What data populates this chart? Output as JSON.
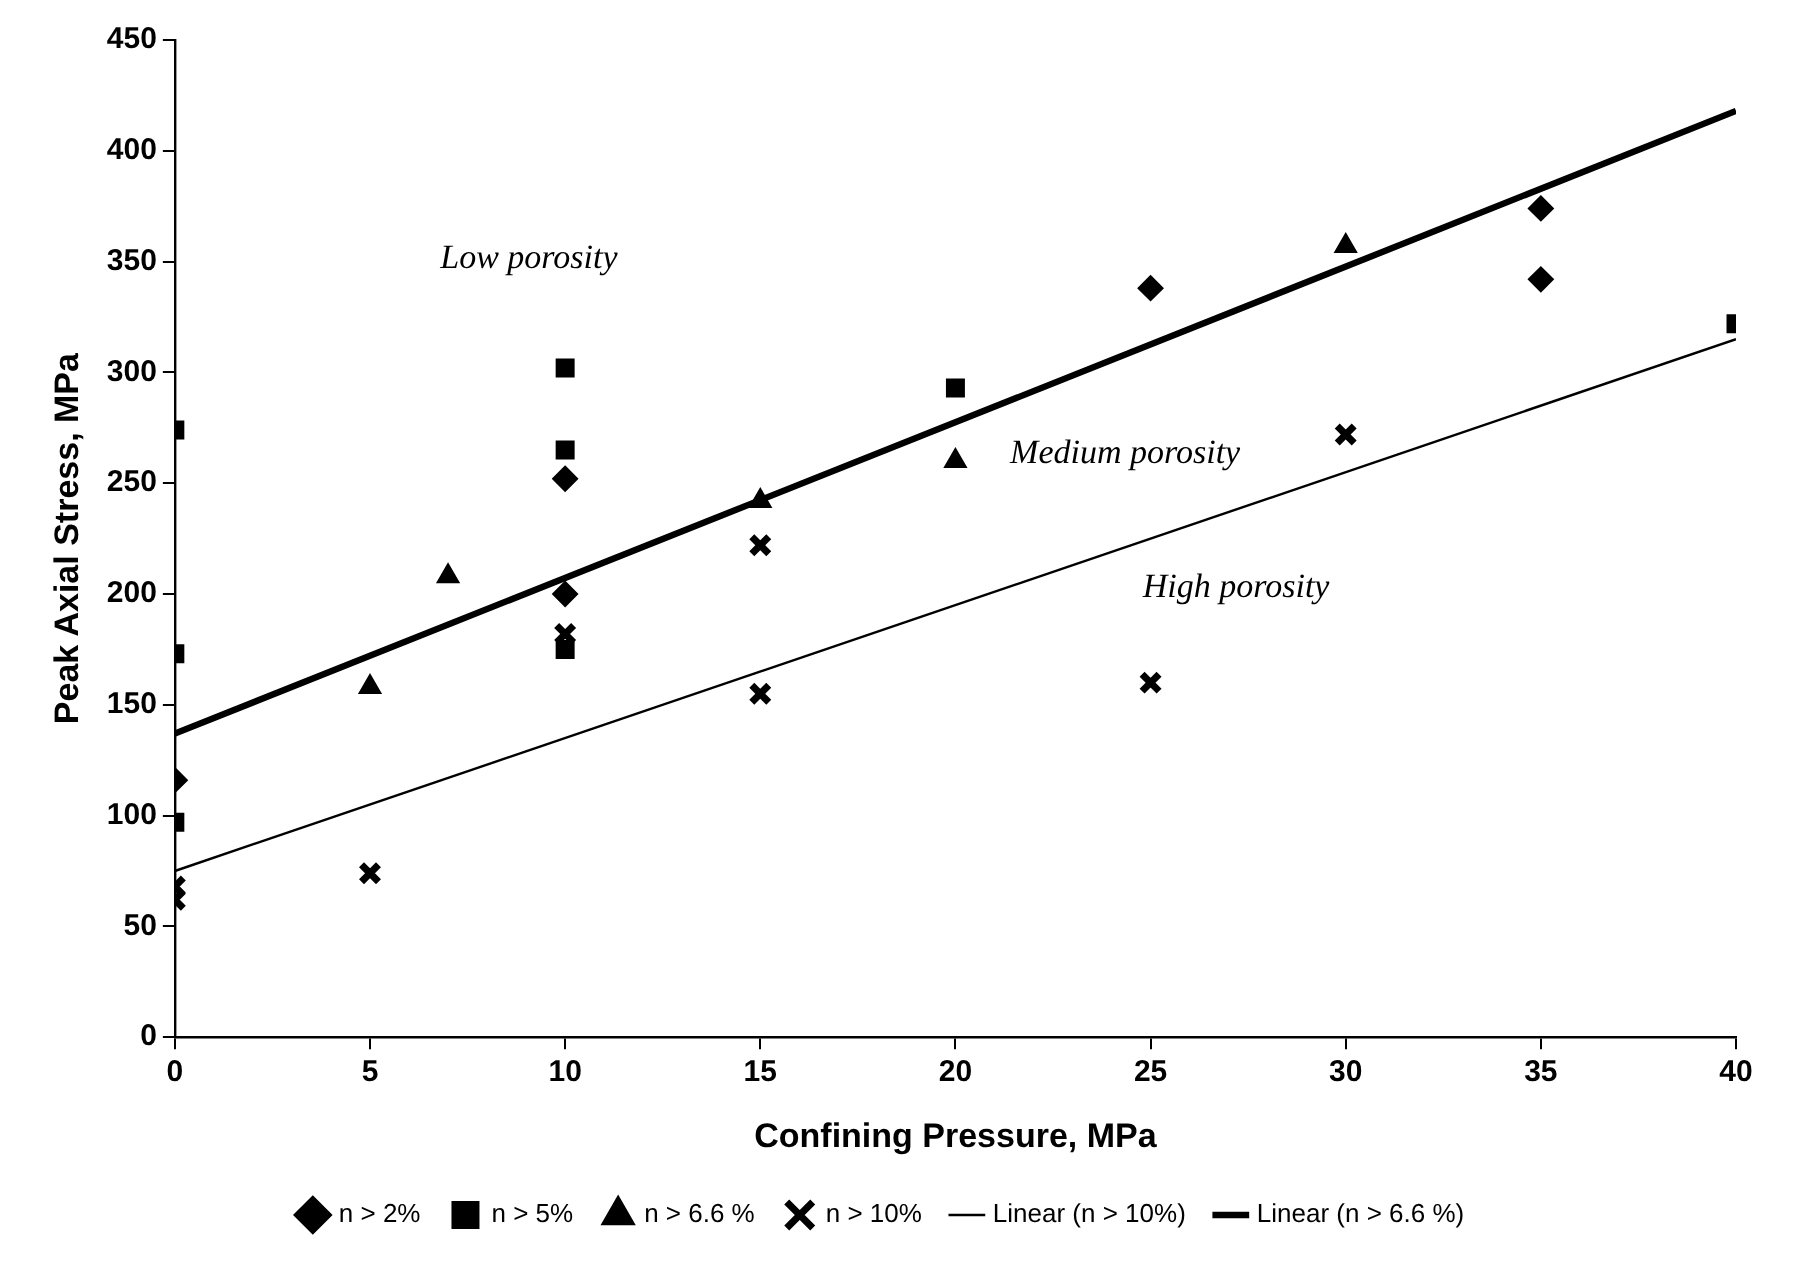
{
  "chart_data": {
    "type": "scatter",
    "xlabel": "Confining Pressure, MPa",
    "ylabel": "Peak Axial Stress, MPa",
    "xlim": [
      0,
      40
    ],
    "ylim": [
      0,
      450
    ],
    "xticks": [
      0,
      5,
      10,
      15,
      20,
      25,
      30,
      35,
      40
    ],
    "yticks": [
      0,
      50,
      100,
      150,
      200,
      250,
      300,
      350,
      400,
      450
    ],
    "grid": false,
    "legend": "bottom",
    "annotations": [
      "Low porosity",
      "Medium porosity",
      "High porosity"
    ],
    "series": [
      {
        "name": "n > 2%",
        "color": "#000000",
        "marker": "diamond",
        "x": [
          0,
          10,
          10,
          25,
          35,
          35
        ],
        "values": [
          116,
          252,
          200,
          338,
          374,
          342
        ]
      },
      {
        "name": "n > 5%",
        "color": "#000000",
        "marker": "square",
        "x": [
          0,
          0,
          0,
          10,
          10,
          10,
          20,
          40
        ],
        "values": [
          274,
          173,
          97,
          302,
          265,
          175,
          293,
          322
        ]
      },
      {
        "name": "n > 6.6 %",
        "color": "#000000",
        "marker": "triangle",
        "x": [
          5,
          7,
          15,
          20,
          30
        ],
        "values": [
          158,
          208,
          242,
          260,
          357
        ]
      },
      {
        "name": "n > 10%",
        "color": "#000000",
        "marker": "cross",
        "x": [
          0,
          0,
          5,
          10,
          15,
          15,
          25,
          30
        ],
        "values": [
          68,
          62,
          74,
          182,
          222,
          155,
          160,
          272
        ]
      },
      {
        "name": "Linear (n > 10%)",
        "type": "line",
        "color": "#000000",
        "marker": "none",
        "line_style": "solid",
        "x": [
          0,
          40
        ],
        "values": [
          75,
          315
        ]
      },
      {
        "name": "Linear (n > 6.6 %)",
        "type": "line",
        "color": "#000000",
        "marker": "none",
        "line_style": "solid",
        "x": [
          0,
          40
        ],
        "values": [
          137,
          418
        ]
      }
    ]
  }
}
